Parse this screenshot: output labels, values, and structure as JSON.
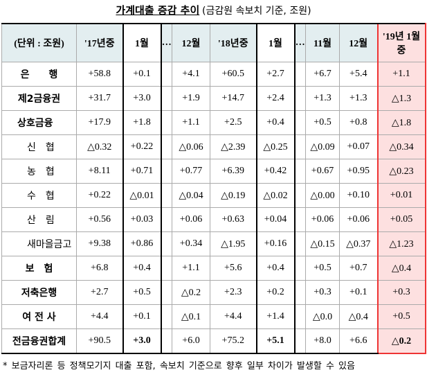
{
  "title": "가계대출 증감 추이",
  "subtitle": "(금감원 속보치 기준, 조원)",
  "table": {
    "headers": [
      "(단위 : 조원)",
      "'17년중",
      "1월",
      "…",
      "12월",
      "'18년중",
      "1월",
      "…",
      "11월",
      "12월",
      "'19년 1월중"
    ],
    "rows": [
      [
        "은　　행",
        "+58.8",
        "+0.1",
        "+4.1",
        "+60.5",
        "+2.7",
        "+6.7",
        "+5.4",
        "+1.1"
      ],
      [
        "제2금융권",
        "+31.7",
        "+3.0",
        "+1.9",
        "+14.7",
        "+2.4",
        "+1.3",
        "+1.3",
        "△1.3"
      ],
      [
        "상호금융",
        "+17.9",
        "+1.8",
        "+1.1",
        "+2.5",
        "+0.4",
        "+0.5",
        "+0.8",
        "△1.8"
      ],
      [
        "신　협",
        "△0.32",
        "+0.22",
        "△0.06",
        "△2.39",
        "△0.25",
        "△0.09",
        "+0.07",
        "△0.34"
      ],
      [
        "농　협",
        "+8.11",
        "+0.71",
        "+0.77",
        "+6.39",
        "+0.42",
        "+0.67",
        "+0.95",
        "△0.23"
      ],
      [
        "수　협",
        "+0.22",
        "△0.01",
        "△0.04",
        "△0.19",
        "△0.02",
        "△0.00",
        "+0.10",
        "+0.01"
      ],
      [
        "산　림",
        "+0.56",
        "+0.03",
        "+0.06",
        "+0.63",
        "+0.04",
        "+0.06",
        "+0.06",
        "+0.05"
      ],
      [
        "새마을금고",
        "+9.38",
        "+0.86",
        "+0.34",
        "△1.95",
        "+0.16",
        "△0.15",
        "△0.37",
        "△1.23"
      ],
      [
        "보　험",
        "+6.8",
        "+0.4",
        "+1.1",
        "+5.6",
        "+0.4",
        "+0.5",
        "+0.7",
        "△0.4"
      ],
      [
        "저축은행",
        "+2.7",
        "+0.5",
        "△0.2",
        "+2.3",
        "+0.2",
        "+0.3",
        "+0.1",
        "+0.3"
      ],
      [
        "여 전 사",
        "+4.4",
        "+0.1",
        "△0.1",
        "+4.4",
        "+1.4",
        "△0.0",
        "△0.4",
        "+0.5"
      ],
      [
        "전금융권합계",
        "+90.5",
        "+3.0",
        "+6.0",
        "+75.2",
        "+5.1",
        "+8.0",
        "+6.6",
        "△0.2"
      ]
    ]
  },
  "footnote": "* 보금자리론 등 정책모기지 대출 포함, 속보치 기준으로 향후 일부 차이가 발생할 수 있음"
}
